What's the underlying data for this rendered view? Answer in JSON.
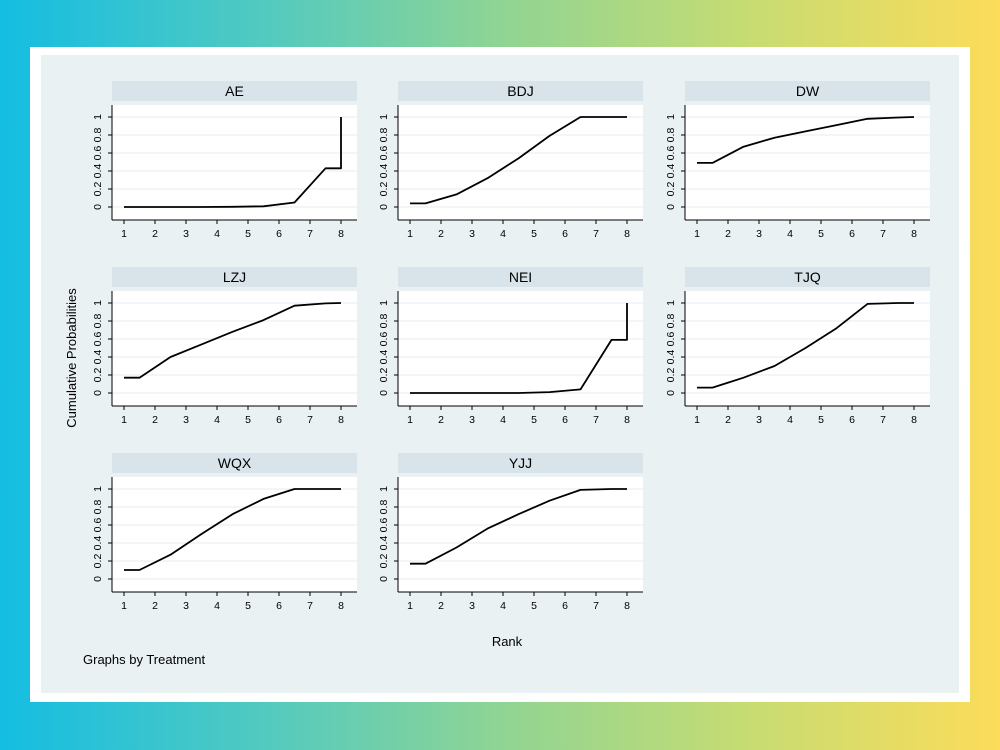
{
  "chart_data": {
    "type": "line",
    "ylabel": "Cumulative Probabilities",
    "xlabel": "Rank",
    "note": "Graphs by Treatment",
    "x_ticks": [
      1,
      2,
      3,
      4,
      5,
      6,
      7,
      8
    ],
    "y_ticks": [
      0,
      0.2,
      0.4,
      0.6,
      0.8,
      1
    ],
    "xlim": [
      1,
      8
    ],
    "ylim": [
      0,
      1
    ],
    "panels": [
      {
        "title": "AE",
        "x": [
          1,
          1.5,
          2.5,
          3.5,
          4.5,
          5.5,
          6.5,
          7.5,
          8,
          8
        ],
        "y": [
          0,
          0,
          0,
          0,
          0.002,
          0.008,
          0.05,
          0.43,
          0.43,
          1
        ]
      },
      {
        "title": "BDJ",
        "x": [
          1,
          1.5,
          2.5,
          3.5,
          4.5,
          5.5,
          6.5,
          7.5,
          8
        ],
        "y": [
          0.04,
          0.04,
          0.14,
          0.32,
          0.54,
          0.79,
          1,
          1,
          1
        ]
      },
      {
        "title": "DW",
        "x": [
          1,
          1.5,
          2.5,
          3.5,
          4.5,
          5.5,
          6.5,
          7.5,
          8
        ],
        "y": [
          0.49,
          0.49,
          0.67,
          0.77,
          0.84,
          0.91,
          0.98,
          0.995,
          1
        ]
      },
      {
        "title": "LZJ",
        "x": [
          1,
          1.5,
          2.5,
          3.5,
          4.5,
          5.5,
          6.5,
          7.5,
          8
        ],
        "y": [
          0.17,
          0.17,
          0.4,
          0.54,
          0.68,
          0.81,
          0.97,
          0.995,
          1
        ]
      },
      {
        "title": "NEI",
        "x": [
          1,
          1.5,
          2.5,
          3.5,
          4.5,
          5.5,
          6.5,
          7.5,
          8,
          8
        ],
        "y": [
          0,
          0,
          0,
          0,
          0,
          0.01,
          0.04,
          0.59,
          0.59,
          1
        ]
      },
      {
        "title": "TJQ",
        "x": [
          1,
          1.5,
          2.5,
          3.5,
          4.5,
          5.5,
          6.5,
          7.5,
          8
        ],
        "y": [
          0.06,
          0.06,
          0.17,
          0.3,
          0.5,
          0.72,
          0.99,
          1,
          1
        ]
      },
      {
        "title": "WQX",
        "x": [
          1,
          1.5,
          2.5,
          3.5,
          4.5,
          5.5,
          6.5,
          7.5,
          8
        ],
        "y": [
          0.1,
          0.1,
          0.27,
          0.5,
          0.72,
          0.89,
          1,
          1,
          1
        ]
      },
      {
        "title": "YJJ",
        "x": [
          1,
          1.5,
          2.5,
          3.5,
          4.5,
          5.5,
          6.5,
          7.5,
          8
        ],
        "y": [
          0.17,
          0.17,
          0.35,
          0.56,
          0.72,
          0.87,
          0.99,
          1,
          1
        ]
      }
    ]
  },
  "style": {
    "line_color": "#000000",
    "header_color": "#d8e4ea",
    "panel_bg": "#ffffff",
    "grid_color": "#e5ecf0",
    "plot_bg": "#eaf1f3"
  }
}
